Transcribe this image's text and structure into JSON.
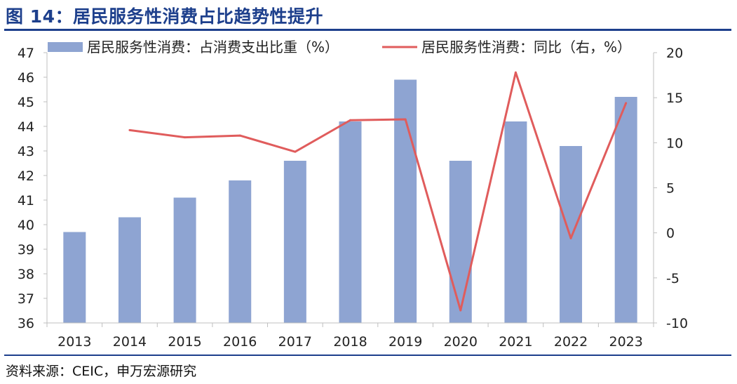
{
  "title": "图 14：居民服务性消费占比趋势性提升",
  "source": "资料来源：CEIC，申万宏源研究",
  "colors": {
    "bar": "#8ea4d2",
    "line": "#e05c5c",
    "title": "#1d3f8c",
    "axis": "#bfbfbf",
    "text": "#222222"
  },
  "chart_data": {
    "type": "bar",
    "categories": [
      "2013",
      "2014",
      "2015",
      "2016",
      "2017",
      "2018",
      "2019",
      "2020",
      "2021",
      "2022",
      "2023"
    ],
    "series": [
      {
        "name": "居民服务性消费：占消费支出比重（%）",
        "type": "bar",
        "axis": "left",
        "values": [
          39.7,
          40.3,
          41.1,
          41.8,
          42.6,
          44.2,
          45.9,
          42.6,
          44.2,
          43.2,
          45.2
        ]
      },
      {
        "name": "居民服务性消费：同比（右，%）",
        "type": "line",
        "axis": "right",
        "values": [
          null,
          11.4,
          10.6,
          10.8,
          9.0,
          12.5,
          12.6,
          -8.6,
          17.8,
          -0.6,
          14.4
        ]
      }
    ],
    "yleft": {
      "min": 36,
      "max": 47,
      "step": 1
    },
    "yright": {
      "min": -10,
      "max": 20,
      "step": 5
    },
    "legend": "top",
    "grid": false
  }
}
